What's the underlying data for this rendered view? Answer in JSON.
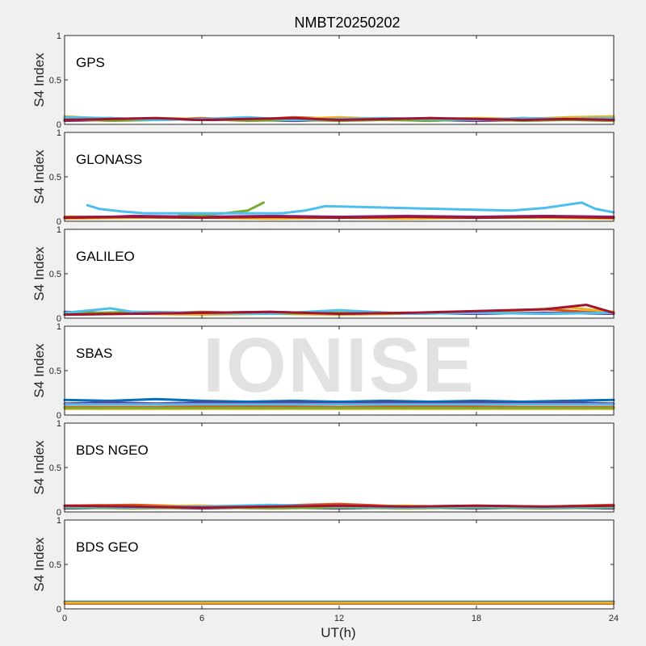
{
  "title": "NMBT20250202",
  "watermark": "IONISE",
  "chart_data": {
    "type": "line",
    "title": "NMBT20250202",
    "xlabel": "UT(h)",
    "xlim": [
      0,
      24
    ],
    "xticks": [
      0,
      6,
      12,
      18,
      24
    ],
    "grid": false,
    "colors": [
      "#0072BD",
      "#D95319",
      "#EDB120",
      "#7E2F8E",
      "#77AC30",
      "#4DBEEE",
      "#A2142F"
    ],
    "panels": [
      {
        "label": "GPS",
        "ylabel": "S4 Index",
        "ylim": [
          0,
          1
        ],
        "yticks": [
          0,
          0.5,
          1
        ],
        "series": [
          {
            "x": [
              0,
              2,
              4,
              6,
              8,
              10,
              12,
              14,
              16,
              18,
              20,
              22,
              24
            ],
            "values": [
              0.07,
              0.06,
              0.06,
              0.05,
              0.06,
              0.06,
              0.07,
              0.06,
              0.05,
              0.06,
              0.06,
              0.07,
              0.06
            ]
          },
          {
            "x": [
              0,
              2,
              4,
              6,
              8,
              10,
              12,
              14,
              16,
              18,
              20,
              22,
              24
            ],
            "values": [
              0.05,
              0.07,
              0.05,
              0.07,
              0.05,
              0.08,
              0.06,
              0.05,
              0.07,
              0.05,
              0.07,
              0.06,
              0.08
            ]
          },
          {
            "x": [
              0,
              2,
              4,
              6,
              8,
              10,
              12,
              14,
              16,
              18,
              20,
              22,
              24
            ],
            "values": [
              0.09,
              0.06,
              0.07,
              0.06,
              0.07,
              0.06,
              0.08,
              0.06,
              0.06,
              0.07,
              0.06,
              0.08,
              0.09
            ]
          },
          {
            "x": [
              0,
              2,
              4,
              6,
              8,
              10,
              12,
              14,
              16,
              18,
              20,
              22,
              24
            ],
            "values": [
              0.04,
              0.05,
              0.06,
              0.05,
              0.05,
              0.04,
              0.05,
              0.06,
              0.05,
              0.04,
              0.05,
              0.05,
              0.05
            ]
          },
          {
            "x": [
              0,
              2,
              4,
              6,
              8,
              10,
              12,
              14,
              16,
              18,
              20,
              22,
              24
            ],
            "values": [
              0.06,
              0.04,
              0.05,
              0.06,
              0.04,
              0.05,
              0.04,
              0.05,
              0.04,
              0.06,
              0.04,
              0.05,
              0.04
            ]
          },
          {
            "x": [
              0,
              2,
              4,
              6,
              8,
              10,
              12,
              14,
              16,
              18,
              20,
              22,
              24
            ],
            "values": [
              0.08,
              0.07,
              0.05,
              0.06,
              0.08,
              0.05,
              0.06,
              0.07,
              0.06,
              0.05,
              0.07,
              0.06,
              0.07
            ]
          },
          {
            "x": [
              0,
              2,
              4,
              6,
              8,
              10,
              12,
              14,
              16,
              18,
              20,
              22,
              24
            ],
            "values": [
              0.05,
              0.06,
              0.07,
              0.05,
              0.06,
              0.07,
              0.05,
              0.06,
              0.07,
              0.06,
              0.05,
              0.06,
              0.05
            ]
          }
        ]
      },
      {
        "label": "GLONASS",
        "ylabel": "S4 Index",
        "ylim": [
          0,
          1
        ],
        "yticks": [
          0,
          0.5,
          1
        ],
        "series": [
          {
            "x": [
              0,
              3,
              6,
              9,
              12,
              15,
              18,
              21,
              24
            ],
            "values": [
              0.04,
              0.04,
              0.05,
              0.04,
              0.05,
              0.05,
              0.04,
              0.05,
              0.04
            ]
          },
          {
            "x": [
              0,
              3,
              6,
              9,
              12,
              15,
              18,
              21,
              24
            ],
            "values": [
              0.05,
              0.05,
              0.04,
              0.05,
              0.05,
              0.04,
              0.05,
              0.04,
              0.05
            ]
          },
          {
            "x": [
              0,
              3,
              6,
              9,
              12,
              15,
              18,
              21,
              24
            ],
            "values": [
              0.03,
              0.04,
              0.04,
              0.03,
              0.04,
              0.03,
              0.04,
              0.04,
              0.03
            ]
          },
          {
            "x": [
              0,
              2,
              3,
              6,
              9,
              12,
              15,
              18,
              21,
              24
            ],
            "values": [
              0.04,
              0.05,
              0.06,
              0.05,
              0.06,
              0.05,
              0.06,
              0.05,
              0.06,
              0.05
            ]
          },
          {
            "x": [
              5,
              6,
              7,
              8,
              8.7
            ],
            "values": [
              0.08,
              0.07,
              0.09,
              0.12,
              0.21
            ]
          },
          {
            "x": [
              1.0,
              1.5,
              2.5,
              3.5,
              9.5,
              10.5,
              11.4,
              19.5,
              21.0,
              22.6,
              23.2,
              24
            ],
            "values": [
              0.18,
              0.14,
              0.11,
              0.09,
              0.09,
              0.12,
              0.17,
              0.12,
              0.15,
              0.21,
              0.14,
              0.1
            ]
          },
          {
            "x": [
              0,
              3,
              6,
              9,
              12,
              15,
              18,
              21,
              24
            ],
            "values": [
              0.04,
              0.05,
              0.04,
              0.05,
              0.04,
              0.05,
              0.04,
              0.05,
              0.04
            ]
          }
        ]
      },
      {
        "label": "GALILEO",
        "ylabel": "S4 Index",
        "ylim": [
          0,
          1
        ],
        "yticks": [
          0,
          0.5,
          1
        ],
        "series": [
          {
            "x": [
              0,
              3,
              6,
              9,
              12,
              15,
              18,
              21,
              24
            ],
            "values": [
              0.05,
              0.06,
              0.05,
              0.06,
              0.05,
              0.06,
              0.05,
              0.06,
              0.05
            ]
          },
          {
            "x": [
              0,
              3,
              6,
              9,
              12,
              15,
              18,
              21,
              24
            ],
            "values": [
              0.06,
              0.05,
              0.07,
              0.05,
              0.06,
              0.05,
              0.07,
              0.1,
              0.05
            ]
          },
          {
            "x": [
              0,
              3,
              6,
              9,
              12,
              15,
              18,
              20,
              22,
              24
            ],
            "values": [
              0.04,
              0.05,
              0.04,
              0.05,
              0.04,
              0.05,
              0.06,
              0.09,
              0.12,
              0.07
            ]
          },
          {
            "x": [
              0,
              3,
              6,
              9,
              12,
              15,
              18,
              21,
              24
            ],
            "values": [
              0.07,
              0.05,
              0.06,
              0.07,
              0.05,
              0.06,
              0.05,
              0.06,
              0.05
            ]
          },
          {
            "x": [
              0,
              3,
              6,
              9,
              12,
              15,
              18,
              21,
              24
            ],
            "values": [
              0.05,
              0.07,
              0.06,
              0.05,
              0.06,
              0.05,
              0.06,
              0.05,
              0.06
            ]
          },
          {
            "x": [
              0,
              2,
              3,
              6,
              9,
              12,
              15,
              18,
              21,
              24
            ],
            "values": [
              0.06,
              0.11,
              0.07,
              0.06,
              0.05,
              0.09,
              0.05,
              0.06,
              0.05,
              0.06
            ]
          },
          {
            "x": [
              0,
              3,
              6,
              9,
              12,
              15,
              18,
              21,
              22.8,
              24
            ],
            "values": [
              0.04,
              0.05,
              0.06,
              0.07,
              0.05,
              0.06,
              0.08,
              0.1,
              0.15,
              0.06
            ]
          }
        ]
      },
      {
        "label": "SBAS",
        "ylabel": "S4 Index",
        "ylim": [
          0,
          1
        ],
        "yticks": [
          0,
          0.5,
          1
        ],
        "series": [
          {
            "x": [
              0,
              2,
              4,
              6,
              8,
              10,
              12,
              14,
              16,
              18,
              20,
              22,
              24
            ],
            "values": [
              0.17,
              0.16,
              0.18,
              0.16,
              0.15,
              0.16,
              0.15,
              0.16,
              0.15,
              0.16,
              0.15,
              0.16,
              0.17
            ]
          },
          {
            "x": [
              0,
              4,
              8,
              12,
              16,
              20,
              24
            ],
            "values": [
              0.09,
              0.09,
              0.1,
              0.09,
              0.1,
              0.09,
              0.09
            ]
          },
          {
            "x": [
              0,
              4,
              8,
              12,
              16,
              20,
              24
            ],
            "values": [
              0.07,
              0.07,
              0.07,
              0.07,
              0.07,
              0.07,
              0.07
            ]
          },
          {
            "x": [
              0,
              2,
              4,
              6,
              8,
              10,
              12,
              14,
              16,
              18,
              20,
              22,
              24
            ],
            "values": [
              0.13,
              0.14,
              0.13,
              0.14,
              0.13,
              0.14,
              0.13,
              0.14,
              0.13,
              0.14,
              0.13,
              0.14,
              0.13
            ]
          },
          {
            "x": [
              0,
              4,
              8,
              12,
              16,
              20,
              24
            ],
            "values": [
              0.08,
              0.08,
              0.08,
              0.08,
              0.08,
              0.08,
              0.08
            ]
          },
          {
            "x": [
              0,
              4,
              8,
              12,
              16,
              20,
              24
            ],
            "values": [
              0.12,
              0.12,
              0.12,
              0.12,
              0.12,
              0.12,
              0.12
            ]
          }
        ]
      },
      {
        "label": "BDS NGEO",
        "ylabel": "S4 Index",
        "ylim": [
          0,
          1
        ],
        "yticks": [
          0,
          0.5,
          1
        ],
        "series": [
          {
            "x": [
              0,
              3,
              6,
              9,
              12,
              15,
              18,
              21,
              24
            ],
            "values": [
              0.06,
              0.05,
              0.06,
              0.07,
              0.05,
              0.06,
              0.05,
              0.06,
              0.05
            ]
          },
          {
            "x": [
              0,
              3,
              6,
              9,
              12,
              15,
              18,
              21,
              24
            ],
            "values": [
              0.07,
              0.08,
              0.06,
              0.07,
              0.09,
              0.06,
              0.07,
              0.06,
              0.08
            ]
          },
          {
            "x": [
              0,
              3,
              6,
              9,
              12,
              15,
              18,
              21,
              24
            ],
            "values": [
              0.05,
              0.06,
              0.07,
              0.05,
              0.06,
              0.07,
              0.05,
              0.06,
              0.07
            ]
          },
          {
            "x": [
              0,
              3,
              6,
              9,
              12,
              15,
              18,
              21,
              24
            ],
            "values": [
              0.04,
              0.05,
              0.04,
              0.05,
              0.04,
              0.05,
              0.04,
              0.05,
              0.04
            ]
          },
          {
            "x": [
              0,
              3,
              6,
              9,
              12,
              15,
              18,
              21,
              24
            ],
            "values": [
              0.05,
              0.04,
              0.05,
              0.04,
              0.05,
              0.04,
              0.05,
              0.04,
              0.05
            ]
          },
          {
            "x": [
              0,
              3,
              6,
              9,
              12,
              15,
              18,
              21,
              24
            ],
            "values": [
              0.06,
              0.05,
              0.06,
              0.08,
              0.06,
              0.05,
              0.06,
              0.05,
              0.06
            ]
          },
          {
            "x": [
              0,
              3,
              6,
              9,
              12,
              15,
              18,
              21,
              24
            ],
            "values": [
              0.07,
              0.06,
              0.05,
              0.06,
              0.07,
              0.06,
              0.07,
              0.06,
              0.07
            ]
          }
        ]
      },
      {
        "label": "BDS GEO",
        "ylabel": "S4 Index",
        "ylim": [
          0,
          1
        ],
        "yticks": [
          0,
          0.5,
          1
        ],
        "series": [
          {
            "x": [
              0,
              4,
              8,
              12,
              16,
              20,
              24
            ],
            "values": [
              0.08,
              0.08,
              0.08,
              0.08,
              0.08,
              0.08,
              0.08
            ]
          },
          {
            "x": [
              0,
              4,
              8,
              12,
              16,
              20,
              24
            ],
            "values": [
              0.06,
              0.06,
              0.06,
              0.06,
              0.06,
              0.06,
              0.06
            ]
          },
          {
            "x": [
              0,
              4,
              8,
              12,
              16,
              20,
              24
            ],
            "values": [
              0.07,
              0.07,
              0.07,
              0.07,
              0.07,
              0.07,
              0.07
            ]
          }
        ]
      }
    ]
  }
}
